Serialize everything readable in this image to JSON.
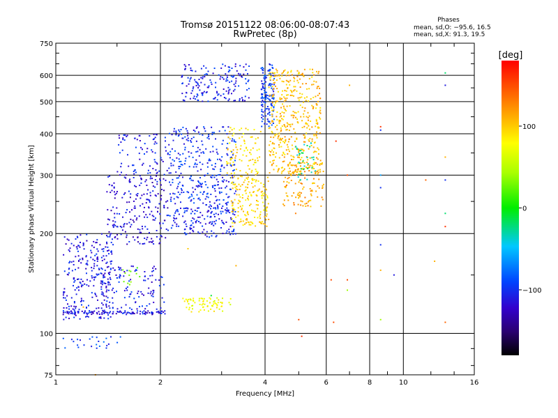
{
  "header": {
    "title": "Tromsø 20151122 08:06:00-08:07:43",
    "subtitle": "RwPretec (8p)"
  },
  "stats": {
    "heading": "Phases",
    "line_o": "mean, sd,O: −95.6, 16.5",
    "line_x": "mean, sd,X:  91.3, 19.5"
  },
  "chart_data": {
    "type": "scatter",
    "xlabel": "Frequency [MHz]",
    "ylabel": "Stationary phase Virtual Height [km]",
    "xscale": "log",
    "yscale": "log",
    "xlim": [
      1,
      16
    ],
    "ylim": [
      75,
      750
    ],
    "x_ticks": [
      1,
      2,
      4,
      6,
      8,
      10,
      16
    ],
    "x_tick_labels": [
      "1",
      "2",
      "4",
      "6",
      "8",
      "10",
      "16"
    ],
    "x_gridlines": [
      2,
      4,
      6,
      8,
      10
    ],
    "y_ticks": [
      75,
      100,
      200,
      300,
      400,
      500,
      600,
      750
    ],
    "y_tick_labels": [
      "75",
      "100",
      "200",
      "300",
      "400",
      "500",
      "600",
      "750"
    ],
    "y_gridlines": [
      100,
      200,
      300,
      400,
      500,
      600
    ],
    "grid": true,
    "colorbar": {
      "label": "[deg]",
      "min": -180,
      "max": 180,
      "ticks": [
        -100,
        0,
        100
      ],
      "tick_labels": [
        "−100",
        "0",
        "100"
      ]
    },
    "clusters": [
      {
        "xr": [
          1.05,
          1.45
        ],
        "yr": [
          110,
          200
        ],
        "phase": -110,
        "n": 260
      },
      {
        "xr": [
          1.05,
          2.1
        ],
        "yr": [
          114,
          117
        ],
        "phase": -112,
        "n": 100
      },
      {
        "xr": [
          1.35,
          2.05
        ],
        "yr": [
          118,
          160
        ],
        "phase": -108,
        "n": 120
      },
      {
        "xr": [
          1.4,
          2.1
        ],
        "yr": [
          185,
          300
        ],
        "phase": -115,
        "n": 220
      },
      {
        "xr": [
          1.5,
          2.1
        ],
        "yr": [
          300,
          400
        ],
        "phase": -110,
        "n": 80
      },
      {
        "xr": [
          2.1,
          3.3
        ],
        "yr": [
          195,
          240
        ],
        "phase": -105,
        "n": 160
      },
      {
        "xr": [
          2.1,
          3.3
        ],
        "yr": [
          240,
          420
        ],
        "phase": -100,
        "n": 320
      },
      {
        "xr": [
          2.3,
          3.6
        ],
        "yr": [
          500,
          650
        ],
        "phase": -105,
        "n": 170
      },
      {
        "xr": [
          3.2,
          4.1
        ],
        "yr": [
          210,
          300
        ],
        "phase": 95,
        "n": 170
      },
      {
        "xr": [
          3.1,
          3.9
        ],
        "yr": [
          300,
          420
        ],
        "phase": 90,
        "n": 90
      },
      {
        "xr": [
          3.9,
          4.25
        ],
        "yr": [
          420,
          650
        ],
        "phase": -95,
        "n": 140
      },
      {
        "xr": [
          4.1,
          5.8
        ],
        "yr": [
          300,
          630
        ],
        "phase": 105,
        "n": 450
      },
      {
        "xr": [
          4.5,
          5.9
        ],
        "yr": [
          240,
          330
        ],
        "phase": 115,
        "n": 110
      },
      {
        "xr": [
          4.9,
          5.6
        ],
        "yr": [
          290,
          380
        ],
        "phase": -30,
        "n": 35
      },
      {
        "xr": [
          2.3,
          3.2
        ],
        "yr": [
          116,
          128
        ],
        "phase": 75,
        "n": 70
      },
      {
        "xr": [
          1.05,
          1.6
        ],
        "yr": [
          90,
          98
        ],
        "phase": -95,
        "n": 25
      },
      {
        "xr": [
          1.55,
          1.75
        ],
        "yr": [
          140,
          158
        ],
        "phase": 20,
        "n": 12
      }
    ],
    "sparse_points": [
      [
        8.6,
        420,
        160
      ],
      [
        8.6,
        410,
        -100
      ],
      [
        8.6,
        300,
        -60
      ],
      [
        8.6,
        275,
        -100
      ],
      [
        8.6,
        185,
        -100
      ],
      [
        8.6,
        155,
        110
      ],
      [
        8.6,
        110,
        40
      ],
      [
        9.4,
        150,
        -110
      ],
      [
        13.2,
        610,
        -20
      ],
      [
        13.2,
        560,
        -110
      ],
      [
        13.2,
        340,
        110
      ],
      [
        13.2,
        290,
        -100
      ],
      [
        13.2,
        230,
        -20
      ],
      [
        13.2,
        210,
        160
      ],
      [
        13.2,
        108,
        140
      ],
      [
        12.3,
        165,
        110
      ],
      [
        11.6,
        290,
        140
      ],
      [
        7.0,
        560,
        110
      ],
      [
        6.4,
        380,
        160
      ],
      [
        6.2,
        145,
        150
      ],
      [
        6.9,
        300,
        150
      ],
      [
        6.9,
        145,
        150
      ],
      [
        6.9,
        135,
        40
      ],
      [
        5.1,
        98,
        160
      ],
      [
        5.0,
        110,
        150
      ],
      [
        6.3,
        108,
        150
      ],
      [
        4.9,
        230,
        130
      ],
      [
        1.3,
        75,
        120
      ],
      [
        1.2,
        120,
        110
      ],
      [
        2.4,
        180,
        100
      ],
      [
        3.3,
        160,
        110
      ],
      [
        2.8,
        130,
        -10
      ]
    ]
  }
}
